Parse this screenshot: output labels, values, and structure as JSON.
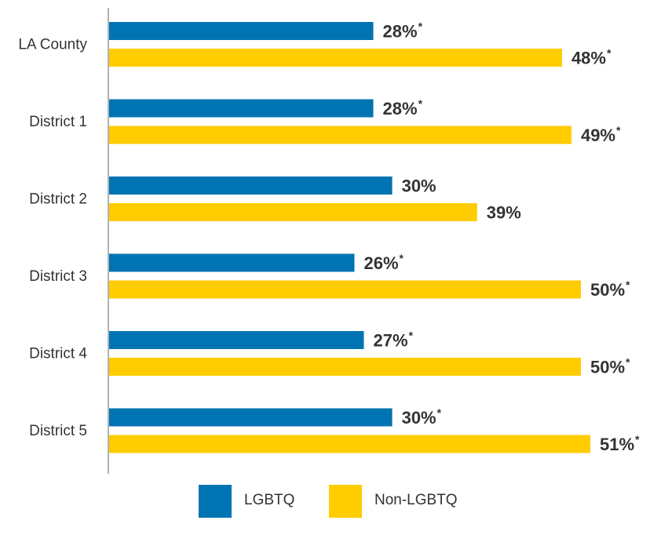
{
  "chart_data": {
    "type": "bar",
    "orientation": "horizontal",
    "categories": [
      "LA County",
      "District 1",
      "District 2",
      "District 3",
      "District 4",
      "District 5"
    ],
    "series": [
      {
        "name": "LGBTQ",
        "color": "#0074B2",
        "values": [
          28,
          28,
          30,
          26,
          27,
          30
        ],
        "labels": [
          "28%",
          "28%",
          "30%",
          "26%",
          "27%",
          "30%"
        ],
        "marks": [
          "*",
          "*",
          "",
          "*",
          "*",
          "*"
        ]
      },
      {
        "name": "Non-LGBTQ",
        "color": "#FFCC00",
        "values": [
          48,
          49,
          39,
          50,
          50,
          51
        ],
        "labels": [
          "48%",
          "49%",
          "39%",
          "50%",
          "50%",
          "51%"
        ],
        "marks": [
          "*",
          "*",
          "",
          "*",
          "*",
          "*"
        ]
      }
    ],
    "grid": false,
    "legend": "bottom-center"
  }
}
